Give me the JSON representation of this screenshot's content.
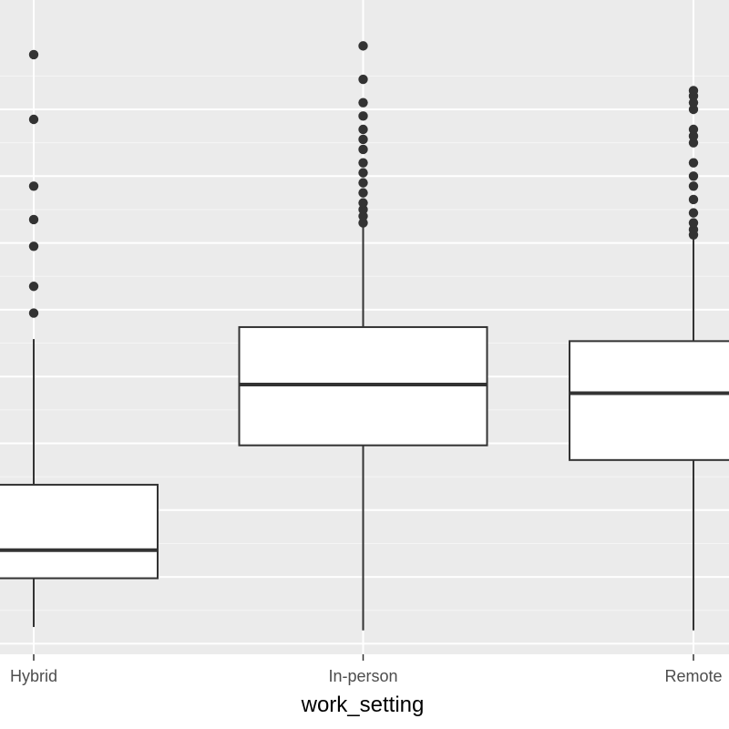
{
  "chart_data": {
    "type": "boxplot",
    "title": "",
    "xlabel": "work_setting",
    "ylabel": "",
    "categories": [
      "Hybrid",
      "In-person",
      "Remote"
    ],
    "ylim": [
      0.8,
      10.0
    ],
    "grid": true,
    "y_gridlines_major": [
      1,
      2,
      3,
      4,
      5,
      6,
      7,
      8,
      9
    ],
    "y_gridlines_minor": [
      1.5,
      2.5,
      3.5,
      4.5,
      5.5,
      6.5,
      7.5,
      8.5,
      9.5
    ],
    "boxes": [
      {
        "category": "Hybrid",
        "whisker_low": 1.25,
        "q1": 1.98,
        "median": 2.4,
        "q3": 3.38,
        "whisker_high": 5.56,
        "outliers": [
          5.95,
          6.35,
          6.95,
          7.35,
          7.85,
          8.85,
          9.82
        ]
      },
      {
        "category": "In-person",
        "whisker_low": 1.2,
        "q1": 3.97,
        "median": 4.88,
        "q3": 5.74,
        "whisker_high": 7.24,
        "outliers": [
          7.3,
          7.4,
          7.5,
          7.6,
          7.75,
          7.9,
          8.05,
          8.2,
          8.4,
          8.55,
          8.7,
          8.9,
          9.1,
          9.45,
          9.95
        ]
      },
      {
        "category": "Remote",
        "whisker_low": 1.2,
        "q1": 3.75,
        "median": 4.75,
        "q3": 5.53,
        "whisker_high": 7.1,
        "outliers": [
          7.12,
          7.2,
          7.3,
          7.45,
          7.65,
          7.85,
          8.0,
          8.2,
          8.5,
          8.6,
          8.7,
          9.0,
          9.1,
          9.2,
          9.28
        ]
      }
    ],
    "colors": {
      "panel_background": "#ebebeb",
      "grid_major": "#ffffff",
      "box_fill": "#ffffff",
      "box_stroke": "#333333",
      "outlier": "#333333",
      "tick_text": "#4d4d4d",
      "axis_title_text": "#000000"
    }
  }
}
